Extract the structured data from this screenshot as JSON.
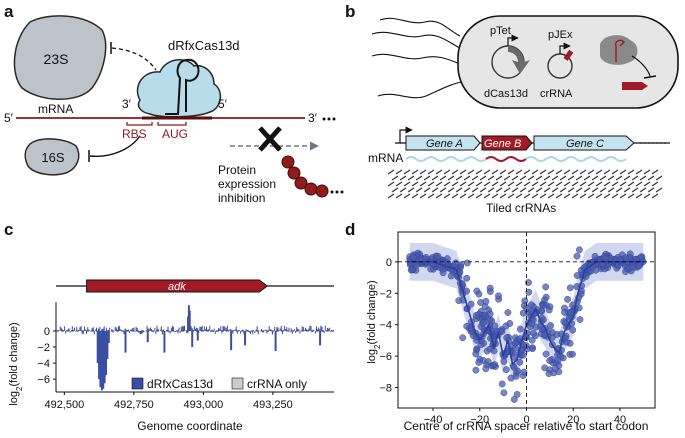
{
  "panels": {
    "a": {
      "letter": "a",
      "ribosome_large": "23S",
      "ribosome_small": "16S",
      "enzyme": "dRfxCas13d",
      "prime3_left": "3′",
      "prime5_right": "5′",
      "strand_5": "5′",
      "strand_3": "3′",
      "mrna": "mRNA",
      "rbs": "RBS",
      "aug": "AUG",
      "result_line1": "Protein",
      "result_line2": "expression",
      "result_line3": "inhibition",
      "colors": {
        "ribosome": "#bcc3c9",
        "enzyme": "#b9dcea",
        "mrna": "#8b1a1f",
        "beads": "#8e1c1c"
      }
    },
    "b": {
      "letter": "b",
      "ptet": "pTet",
      "pjex": "pJEx",
      "dcas": "dCas13d",
      "crrna": "crRNA",
      "gene_a": "Gene A",
      "gene_b": "Gene B",
      "gene_c": "Gene C",
      "mrna": "mRNA",
      "tiled": "Tiled crRNAs",
      "colors": {
        "cell": "#e6e6e6",
        "gene_light": "#c4e3ee",
        "gene_dark": "#a11a26",
        "wave": "#a8d8e8"
      }
    },
    "c": {
      "letter": "c",
      "gene": "adk",
      "ylabel_pre": "log",
      "ylabel_sub": "2",
      "ylabel_post": "(fold change)",
      "xlabel": "Genome coordinate",
      "legend_1": "dRfxCas13d",
      "legend_2": "crRNA only",
      "colors": {
        "signal": "#3b4ea3",
        "control": "#cccccc",
        "gene": "#a11a26"
      }
    },
    "d": {
      "letter": "d",
      "ylabel_pre": "log",
      "ylabel_sub": "2",
      "ylabel_post": "(fold change)",
      "xlabel": "Centre of crRNA spacer relative to start codon",
      "colors": {
        "points": "#4a5cac",
        "band": "#b3bde3",
        "line": "#2c3f9b"
      }
    }
  },
  "chart_data": [
    {
      "type": "bar",
      "xlabel": "Genome coordinate",
      "ylabel": "log2(fold change)",
      "xticks": [
        492500,
        492750,
        493000,
        493250
      ],
      "xtick_labels": [
        "492,500",
        "492,750",
        "493,000",
        "493,250"
      ],
      "yticks": [
        0,
        -2,
        -4,
        -6
      ],
      "xlim": [
        492470,
        493470
      ],
      "ylim": [
        -7.6,
        3.6
      ],
      "gene": {
        "name": "adk",
        "start": 492580,
        "end": 493230
      },
      "legend": [
        "dRfxCas13d",
        "crRNA only"
      ],
      "series": [
        {
          "name": "dRfxCas13d",
          "x": [
            492620,
            492625,
            492630,
            492635,
            492640,
            492645,
            492650,
            492655,
            492660,
            492720,
            492800,
            492860,
            492945,
            492948,
            492951,
            492960,
            492980,
            493100,
            493150,
            493260,
            493420
          ],
          "values": [
            -4.0,
            -6.0,
            -7.0,
            -7.4,
            -7.2,
            -6.5,
            -5.5,
            -3.5,
            -1.5,
            -2.7,
            -1.4,
            -2.7,
            1.8,
            3.2,
            2.5,
            -2.0,
            -1.2,
            -2.4,
            -1.8,
            -2.5,
            -1.8
          ]
        }
      ]
    },
    {
      "type": "scatter",
      "xlabel": "Centre of crRNA spacer relative to start codon",
      "ylabel": "log2(fold change)",
      "xticks": [
        -40,
        -20,
        0,
        20,
        40
      ],
      "yticks": [
        0,
        -2,
        -4,
        -6,
        -8
      ],
      "xlim": [
        -55,
        55
      ],
      "ylim": [
        -9.3,
        1.9
      ],
      "trend": {
        "x": [
          -50,
          -40,
          -30,
          -25,
          -22,
          -20,
          -18,
          -16,
          -14,
          -12,
          -10,
          -8,
          -6,
          -4,
          -2,
          0,
          2,
          4,
          6,
          8,
          10,
          12,
          14,
          16,
          18,
          20,
          22,
          25,
          30,
          40,
          50
        ],
        "y": [
          0.0,
          0.0,
          -0.5,
          -3.0,
          -4.5,
          -5.0,
          -4.5,
          -4.0,
          -5.5,
          -4.5,
          -6.0,
          -5.0,
          -6.5,
          -6.2,
          -5.0,
          -4.0,
          -3.5,
          -3.0,
          -3.8,
          -4.2,
          -5.0,
          -5.5,
          -5.8,
          -4.5,
          -4.0,
          -3.5,
          -2.0,
          -0.5,
          0.0,
          0.0,
          0.0
        ],
        "band": 1.2
      }
    }
  ]
}
